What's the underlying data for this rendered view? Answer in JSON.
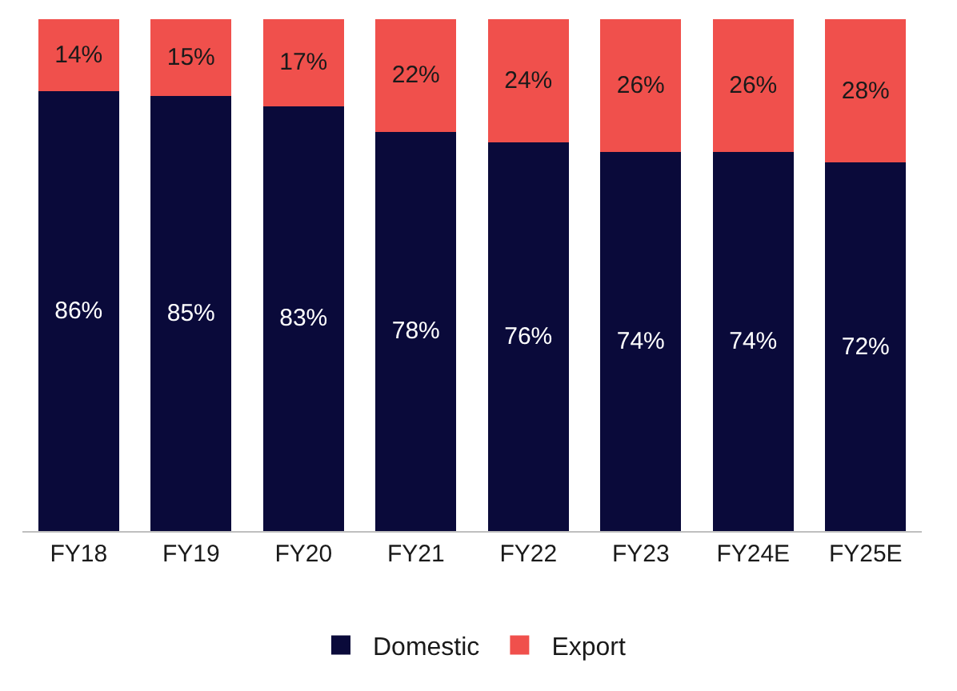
{
  "chart_data": {
    "type": "bar",
    "stacked": true,
    "legend": "bottom",
    "categories": [
      "FY18",
      "FY19",
      "FY20",
      "FY21",
      "FY22",
      "FY23",
      "FY24E",
      "FY25E"
    ],
    "series": [
      {
        "name": "Domestic",
        "color": "#0a0a3a",
        "values": [
          86,
          85,
          83,
          78,
          76,
          74,
          74,
          72
        ],
        "value_labels": [
          "86%",
          "85%",
          "83%",
          "78%",
          "76%",
          "74%",
          "74%",
          "72%"
        ]
      },
      {
        "name": "Export",
        "color": "#f0504c",
        "values": [
          14,
          15,
          17,
          22,
          24,
          26,
          26,
          28
        ],
        "value_labels": [
          "14%",
          "15%",
          "17%",
          "22%",
          "24%",
          "26%",
          "26%",
          "28%"
        ]
      }
    ]
  }
}
